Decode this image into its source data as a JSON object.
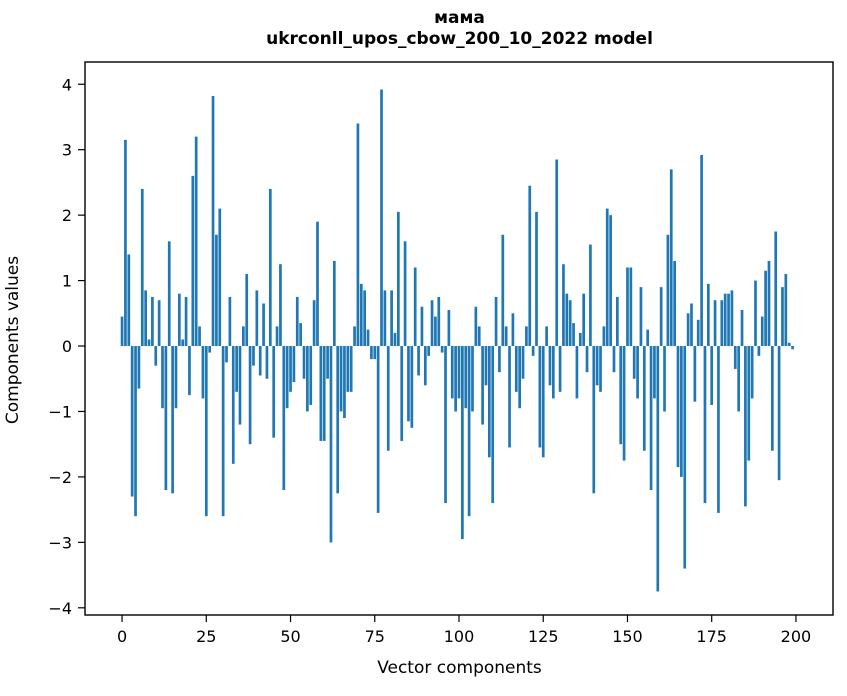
{
  "chart_data": {
    "type": "bar",
    "title": "мама",
    "subtitle": "ukrconll_upos_cbow_200_10_2022 model",
    "xlabel": "Vector components",
    "ylabel": "Components values",
    "bar_color": "#1f77b4",
    "x_tick_labels": [
      "0",
      "25",
      "50",
      "75",
      "100",
      "125",
      "150",
      "175",
      "200"
    ],
    "x_tick_values": [
      0,
      25,
      50,
      75,
      100,
      125,
      150,
      175,
      200
    ],
    "y_tick_labels": [
      "4",
      "3",
      "2",
      "1",
      "0",
      "−1",
      "−2",
      "−3",
      "−4"
    ],
    "y_tick_values": [
      4,
      3,
      2,
      1,
      0,
      -1,
      -2,
      -3,
      -4
    ],
    "xlim": [
      -11,
      211
    ],
    "ylim": [
      -4.11,
      4.34
    ],
    "grid": false,
    "legend": "none",
    "x_start": 0,
    "values": [
      0.45,
      3.15,
      1.4,
      -2.3,
      -2.6,
      -0.65,
      2.4,
      0.85,
      0.1,
      0.75,
      -0.3,
      0.7,
      -0.95,
      -2.2,
      1.6,
      -2.25,
      -0.95,
      0.8,
      0.1,
      0.75,
      -0.75,
      2.6,
      3.2,
      0.3,
      -0.8,
      -2.6,
      -0.1,
      3.82,
      1.7,
      2.1,
      -2.6,
      -0.25,
      0.75,
      -1.8,
      -0.7,
      -1.2,
      0.3,
      1.1,
      -1.5,
      -0.3,
      0.85,
      -0.45,
      0.65,
      -0.5,
      2.4,
      -1.4,
      0.3,
      1.25,
      -2.2,
      -0.95,
      -0.7,
      -0.55,
      0.75,
      0.35,
      -0.5,
      -1.0,
      -0.9,
      0.7,
      1.9,
      -1.45,
      -1.45,
      -0.5,
      -3.0,
      1.3,
      -2.25,
      -1.0,
      -1.1,
      -0.7,
      -0.7,
      0.3,
      3.4,
      0.95,
      0.85,
      0.25,
      -0.2,
      -0.2,
      -2.55,
      3.92,
      0.85,
      -1.6,
      0.85,
      0.2,
      2.05,
      -1.45,
      1.6,
      -1.15,
      -1.25,
      1.2,
      -0.45,
      0.6,
      -0.6,
      -0.15,
      0.7,
      0.45,
      0.75,
      -0.1,
      -2.4,
      0.55,
      -0.8,
      -1.0,
      -0.8,
      -2.95,
      -0.95,
      -2.6,
      -1.0,
      0.6,
      0.3,
      -1.2,
      -0.6,
      -1.7,
      -2.4,
      0.75,
      -0.4,
      1.7,
      0.3,
      -1.55,
      0.5,
      -0.7,
      -0.95,
      -0.5,
      0.3,
      2.45,
      -0.15,
      2.05,
      -1.55,
      -1.7,
      0.3,
      -0.6,
      -0.8,
      2.85,
      -0.7,
      1.25,
      0.8,
      0.7,
      0.35,
      -0.8,
      0.2,
      0.8,
      -0.4,
      1.55,
      -2.25,
      -0.6,
      -0.7,
      0.3,
      2.1,
      2.0,
      -0.4,
      0.75,
      -1.5,
      -1.75,
      1.2,
      1.2,
      -0.5,
      -0.8,
      0.9,
      -1.6,
      0.25,
      -2.2,
      -0.8,
      -3.75,
      0.9,
      -1.0,
      1.7,
      2.7,
      1.3,
      -1.85,
      -2.0,
      -3.4,
      0.5,
      0.65,
      -0.85,
      0.4,
      2.92,
      -2.4,
      0.95,
      -0.9,
      0.7,
      -2.55,
      0.7,
      0.8,
      0.8,
      0.85,
      -0.35,
      -1.0,
      0.55,
      -2.45,
      -1.75,
      -0.8,
      1.0,
      -0.15,
      0.45,
      1.15,
      1.3,
      -1.6,
      1.75,
      -2.05,
      0.9,
      1.1,
      0.05,
      -0.05
    ]
  }
}
